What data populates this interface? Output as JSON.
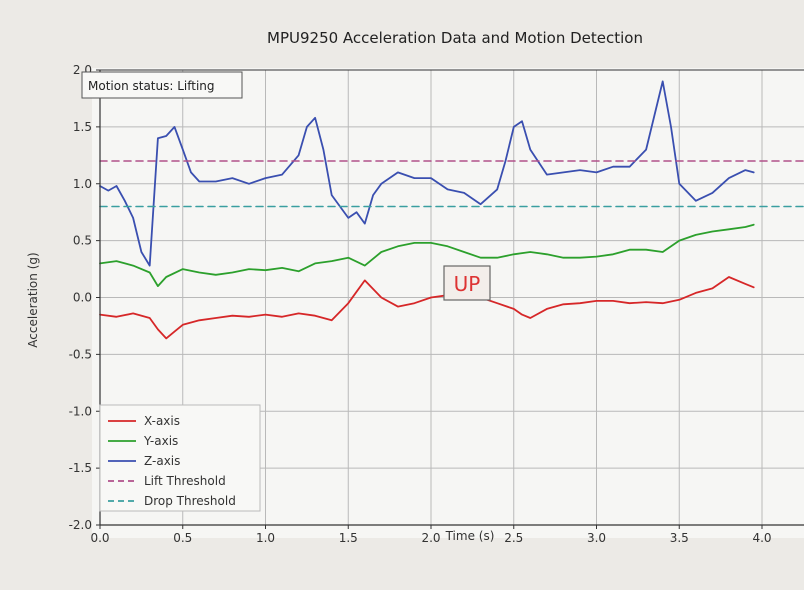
{
  "chart_data": {
    "type": "line",
    "title": "MPU9250 Acceleration Data and Motion Detection",
    "xlabel": "Time (s)",
    "ylabel": "Acceleration (g)",
    "xlim": [
      0.0,
      4.0
    ],
    "ylim": [
      -2.0,
      2.0
    ],
    "x_ticks": [
      "0.0",
      "0.5",
      "1.0",
      "1.5",
      "2.0",
      "2.5",
      "3.0",
      "3.5",
      "4.0"
    ],
    "y_ticks": [
      "-2.0",
      "-1.5",
      "-1.0",
      "-0.5",
      "0.0",
      "0.5",
      "1.0",
      "1.5",
      "2.0"
    ],
    "grid": true,
    "legend_position": "bottom-left",
    "status_box": "Motion status: Lifting",
    "annotation": "UP",
    "series": [
      {
        "name": "X-axis",
        "color": "#d62728",
        "style": "solid",
        "x": [
          0.0,
          0.1,
          0.2,
          0.3,
          0.35,
          0.4,
          0.45,
          0.5,
          0.6,
          0.7,
          0.8,
          0.9,
          1.0,
          1.1,
          1.2,
          1.3,
          1.4,
          1.5,
          1.55,
          1.6,
          1.7,
          1.8,
          1.9,
          2.0,
          2.1,
          2.2,
          2.3,
          2.4,
          2.5,
          2.55,
          2.6,
          2.7,
          2.8,
          2.9,
          3.0,
          3.1,
          3.2,
          3.3,
          3.4,
          3.5,
          3.6,
          3.7,
          3.8,
          3.9,
          3.95
        ],
        "y": [
          -0.15,
          -0.17,
          -0.14,
          -0.18,
          -0.28,
          -0.36,
          -0.3,
          -0.24,
          -0.2,
          -0.18,
          -0.16,
          -0.17,
          -0.15,
          -0.17,
          -0.14,
          -0.16,
          -0.2,
          -0.05,
          0.05,
          0.15,
          0.0,
          -0.08,
          -0.05,
          0.0,
          0.02,
          0.0,
          0.0,
          -0.05,
          -0.1,
          -0.15,
          -0.18,
          -0.1,
          -0.06,
          -0.05,
          -0.03,
          -0.03,
          -0.05,
          -0.04,
          -0.05,
          -0.02,
          0.04,
          0.08,
          0.18,
          0.12,
          0.09
        ]
      },
      {
        "name": "Y-axis",
        "color": "#2ca02c",
        "style": "solid",
        "x": [
          0.0,
          0.1,
          0.2,
          0.3,
          0.35,
          0.4,
          0.5,
          0.6,
          0.7,
          0.8,
          0.9,
          1.0,
          1.1,
          1.2,
          1.3,
          1.4,
          1.5,
          1.6,
          1.7,
          1.8,
          1.9,
          2.0,
          2.1,
          2.2,
          2.3,
          2.4,
          2.5,
          2.6,
          2.7,
          2.8,
          2.9,
          3.0,
          3.1,
          3.2,
          3.3,
          3.4,
          3.5,
          3.6,
          3.7,
          3.8,
          3.9,
          3.95
        ],
        "y": [
          0.3,
          0.32,
          0.28,
          0.22,
          0.1,
          0.18,
          0.25,
          0.22,
          0.2,
          0.22,
          0.25,
          0.24,
          0.26,
          0.23,
          0.3,
          0.32,
          0.35,
          0.28,
          0.4,
          0.45,
          0.48,
          0.48,
          0.45,
          0.4,
          0.35,
          0.35,
          0.38,
          0.4,
          0.38,
          0.35,
          0.35,
          0.36,
          0.38,
          0.42,
          0.42,
          0.4,
          0.5,
          0.55,
          0.58,
          0.6,
          0.62,
          0.64
        ]
      },
      {
        "name": "Z-axis",
        "color": "#3a4fb0",
        "style": "solid",
        "x": [
          0.0,
          0.05,
          0.1,
          0.15,
          0.2,
          0.25,
          0.3,
          0.35,
          0.4,
          0.45,
          0.5,
          0.55,
          0.6,
          0.7,
          0.8,
          0.9,
          1.0,
          1.1,
          1.2,
          1.25,
          1.3,
          1.35,
          1.4,
          1.45,
          1.5,
          1.55,
          1.6,
          1.65,
          1.7,
          1.8,
          1.9,
          2.0,
          2.1,
          2.2,
          2.3,
          2.4,
          2.45,
          2.5,
          2.55,
          2.6,
          2.7,
          2.8,
          2.9,
          3.0,
          3.1,
          3.2,
          3.3,
          3.35,
          3.4,
          3.45,
          3.5,
          3.6,
          3.7,
          3.8,
          3.9,
          3.95
        ],
        "y": [
          0.98,
          0.94,
          0.98,
          0.85,
          0.7,
          0.4,
          0.28,
          1.4,
          1.42,
          1.5,
          1.3,
          1.1,
          1.02,
          1.02,
          1.05,
          1.0,
          1.05,
          1.08,
          1.25,
          1.5,
          1.58,
          1.3,
          0.9,
          0.8,
          0.7,
          0.75,
          0.65,
          0.9,
          1.0,
          1.1,
          1.05,
          1.05,
          0.95,
          0.92,
          0.82,
          0.95,
          1.2,
          1.5,
          1.55,
          1.3,
          1.08,
          1.1,
          1.12,
          1.1,
          1.15,
          1.15,
          1.3,
          1.6,
          1.9,
          1.5,
          1.0,
          0.85,
          0.92,
          1.05,
          1.12,
          1.1
        ]
      },
      {
        "name": "Lift Threshold",
        "color": "#b0508a",
        "style": "dashed",
        "x": [
          0.0,
          4.3
        ],
        "y": [
          1.2,
          1.2
        ]
      },
      {
        "name": "Drop Threshold",
        "color": "#3a9fa0",
        "style": "dashed",
        "x": [
          0.0,
          4.3
        ],
        "y": [
          0.8,
          0.8
        ]
      }
    ]
  }
}
